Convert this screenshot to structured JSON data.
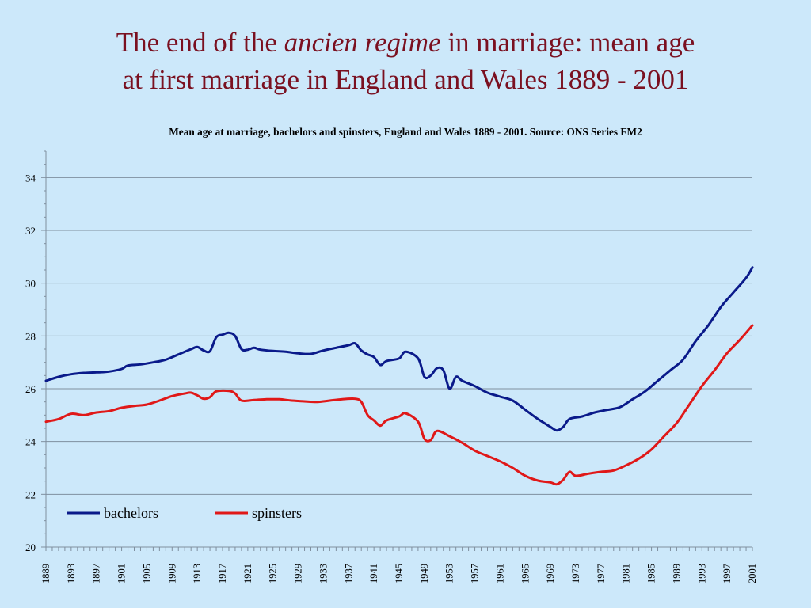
{
  "slide": {
    "title_part1": "The end of the ",
    "title_italic": "ancien regime",
    "title_part2": " in marriage: mean age",
    "title_line2": "at first marriage in England and Wales 1889 - 2001"
  },
  "chart_data": {
    "type": "line",
    "title": "Mean age at marriage, bachelors and spinsters, England and Wales 1889 - 2001. Source: ONS Series FM2",
    "xlabel": "",
    "ylabel": "",
    "ylim": [
      20,
      35
    ],
    "xlim": [
      1889,
      2001
    ],
    "yticks": [
      20,
      22,
      24,
      26,
      28,
      30,
      32,
      34
    ],
    "xticks": [
      1889,
      1893,
      1897,
      1901,
      1905,
      1909,
      1913,
      1917,
      1921,
      1925,
      1929,
      1933,
      1937,
      1941,
      1945,
      1949,
      1953,
      1957,
      1961,
      1965,
      1969,
      1973,
      1977,
      1981,
      1985,
      1989,
      1993,
      1997,
      2001
    ],
    "grid": true,
    "legend_position": "bottom-left",
    "series": [
      {
        "name": "bachelors",
        "color": "#0a1a8a",
        "points": [
          [
            1889,
            26.3
          ],
          [
            1891,
            26.45
          ],
          [
            1893,
            26.55
          ],
          [
            1895,
            26.6
          ],
          [
            1897,
            26.62
          ],
          [
            1899,
            26.65
          ],
          [
            1901,
            26.75
          ],
          [
            1902,
            26.88
          ],
          [
            1904,
            26.92
          ],
          [
            1906,
            27.0
          ],
          [
            1908,
            27.1
          ],
          [
            1910,
            27.3
          ],
          [
            1912,
            27.5
          ],
          [
            1913,
            27.58
          ],
          [
            1914,
            27.45
          ],
          [
            1915,
            27.42
          ],
          [
            1916,
            27.95
          ],
          [
            1917,
            28.05
          ],
          [
            1918,
            28.12
          ],
          [
            1919,
            28.0
          ],
          [
            1920,
            27.5
          ],
          [
            1921,
            27.48
          ],
          [
            1922,
            27.55
          ],
          [
            1923,
            27.48
          ],
          [
            1925,
            27.43
          ],
          [
            1927,
            27.4
          ],
          [
            1929,
            27.34
          ],
          [
            1931,
            27.32
          ],
          [
            1933,
            27.45
          ],
          [
            1935,
            27.55
          ],
          [
            1937,
            27.65
          ],
          [
            1938,
            27.72
          ],
          [
            1939,
            27.45
          ],
          [
            1940,
            27.3
          ],
          [
            1941,
            27.2
          ],
          [
            1942,
            26.9
          ],
          [
            1943,
            27.05
          ],
          [
            1945,
            27.15
          ],
          [
            1946,
            27.4
          ],
          [
            1948,
            27.15
          ],
          [
            1949,
            26.45
          ],
          [
            1950,
            26.5
          ],
          [
            1951,
            26.78
          ],
          [
            1952,
            26.7
          ],
          [
            1953,
            26.0
          ],
          [
            1954,
            26.45
          ],
          [
            1955,
            26.3
          ],
          [
            1957,
            26.1
          ],
          [
            1959,
            25.85
          ],
          [
            1961,
            25.7
          ],
          [
            1963,
            25.55
          ],
          [
            1965,
            25.2
          ],
          [
            1967,
            24.85
          ],
          [
            1969,
            24.55
          ],
          [
            1970,
            24.42
          ],
          [
            1971,
            24.55
          ],
          [
            1972,
            24.85
          ],
          [
            1974,
            24.95
          ],
          [
            1976,
            25.1
          ],
          [
            1978,
            25.2
          ],
          [
            1980,
            25.3
          ],
          [
            1982,
            25.6
          ],
          [
            1984,
            25.9
          ],
          [
            1986,
            26.3
          ],
          [
            1988,
            26.7
          ],
          [
            1990,
            27.1
          ],
          [
            1992,
            27.8
          ],
          [
            1994,
            28.4
          ],
          [
            1996,
            29.1
          ],
          [
            1998,
            29.65
          ],
          [
            2000,
            30.2
          ],
          [
            2001,
            30.6
          ]
        ]
      },
      {
        "name": "spinsters",
        "color": "#e01818",
        "points": [
          [
            1889,
            24.75
          ],
          [
            1891,
            24.85
          ],
          [
            1893,
            25.05
          ],
          [
            1895,
            25.0
          ],
          [
            1897,
            25.1
          ],
          [
            1899,
            25.15
          ],
          [
            1901,
            25.28
          ],
          [
            1903,
            25.35
          ],
          [
            1905,
            25.4
          ],
          [
            1907,
            25.55
          ],
          [
            1909,
            25.72
          ],
          [
            1911,
            25.82
          ],
          [
            1912,
            25.85
          ],
          [
            1913,
            25.75
          ],
          [
            1914,
            25.62
          ],
          [
            1915,
            25.68
          ],
          [
            1916,
            25.9
          ],
          [
            1918,
            25.92
          ],
          [
            1919,
            25.82
          ],
          [
            1920,
            25.55
          ],
          [
            1922,
            25.57
          ],
          [
            1924,
            25.6
          ],
          [
            1926,
            25.6
          ],
          [
            1928,
            25.55
          ],
          [
            1930,
            25.52
          ],
          [
            1932,
            25.5
          ],
          [
            1934,
            25.55
          ],
          [
            1936,
            25.6
          ],
          [
            1938,
            25.62
          ],
          [
            1939,
            25.5
          ],
          [
            1940,
            25.0
          ],
          [
            1941,
            24.8
          ],
          [
            1942,
            24.6
          ],
          [
            1943,
            24.8
          ],
          [
            1945,
            24.95
          ],
          [
            1946,
            25.07
          ],
          [
            1948,
            24.75
          ],
          [
            1949,
            24.1
          ],
          [
            1950,
            24.05
          ],
          [
            1951,
            24.4
          ],
          [
            1953,
            24.2
          ],
          [
            1955,
            23.95
          ],
          [
            1957,
            23.65
          ],
          [
            1959,
            23.45
          ],
          [
            1961,
            23.25
          ],
          [
            1963,
            23.0
          ],
          [
            1965,
            22.7
          ],
          [
            1967,
            22.52
          ],
          [
            1969,
            22.45
          ],
          [
            1970,
            22.38
          ],
          [
            1971,
            22.55
          ],
          [
            1972,
            22.85
          ],
          [
            1973,
            22.7
          ],
          [
            1975,
            22.78
          ],
          [
            1977,
            22.85
          ],
          [
            1979,
            22.9
          ],
          [
            1981,
            23.1
          ],
          [
            1983,
            23.35
          ],
          [
            1985,
            23.7
          ],
          [
            1987,
            24.2
          ],
          [
            1989,
            24.7
          ],
          [
            1991,
            25.4
          ],
          [
            1993,
            26.1
          ],
          [
            1995,
            26.7
          ],
          [
            1997,
            27.35
          ],
          [
            1999,
            27.85
          ],
          [
            2001,
            28.4
          ]
        ]
      }
    ]
  }
}
